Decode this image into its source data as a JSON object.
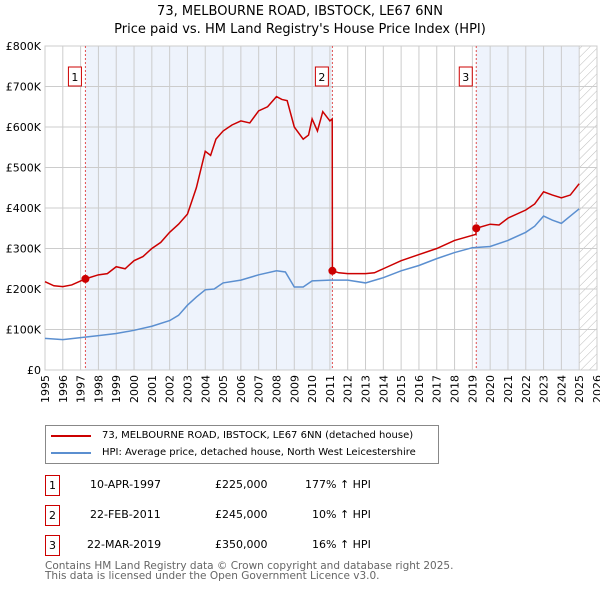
{
  "chart_data": {
    "type": "line",
    "title": "73, MELBOURNE ROAD, IBSTOCK, LE67 6NN",
    "subtitle": "Price paid vs. HM Land Registry's House Price Index (HPI)",
    "xlim": [
      1995,
      2026
    ],
    "ylim": [
      0,
      800000
    ],
    "x_ticks": [
      "1995",
      "1996",
      "1997",
      "1998",
      "1999",
      "2000",
      "2001",
      "2002",
      "2003",
      "2004",
      "2005",
      "2006",
      "2007",
      "2008",
      "2009",
      "2010",
      "2011",
      "2012",
      "2013",
      "2014",
      "2015",
      "2016",
      "2017",
      "2018",
      "2019",
      "2020",
      "2021",
      "2022",
      "2023",
      "2024",
      "2025",
      "2026"
    ],
    "y_ticks": [
      {
        "v": 0,
        "l": "£0"
      },
      {
        "v": 100000,
        "l": "£100K"
      },
      {
        "v": 200000,
        "l": "£200K"
      },
      {
        "v": 300000,
        "l": "£300K"
      },
      {
        "v": 400000,
        "l": "£400K"
      },
      {
        "v": 500000,
        "l": "£500K"
      },
      {
        "v": 600000,
        "l": "£600K"
      },
      {
        "v": 700000,
        "l": "£700K"
      },
      {
        "v": 800000,
        "l": "£800K"
      }
    ],
    "grid": true,
    "series": [
      {
        "name": "73, MELBOURNE ROAD, IBSTOCK, LE67 6NN (detached house)",
        "color": "#cc0000",
        "x": [
          1995,
          1995.5,
          1996,
          1996.5,
          1997.27,
          1998,
          1998.5,
          1999,
          1999.5,
          2000,
          2000.5,
          2001,
          2001.5,
          2002,
          2002.5,
          2003,
          2003.5,
          2004,
          2004.3,
          2004.6,
          2005,
          2005.5,
          2006,
          2006.5,
          2007,
          2007.5,
          2008,
          2008.3,
          2008.6,
          2009,
          2009.5,
          2009.8,
          2010,
          2010.3,
          2010.6,
          2011.0,
          2011.13,
          2011.14,
          2011.5,
          2012,
          2013,
          2013.5,
          2014,
          2015,
          2016,
          2017,
          2018,
          2019.2,
          2019.22,
          2020,
          2020.5,
          2021,
          2022,
          2022.5,
          2023,
          2023.5,
          2024,
          2024.5,
          2025
        ],
        "y": [
          218000,
          208000,
          206000,
          210000,
          225000,
          235000,
          238000,
          255000,
          250000,
          270000,
          280000,
          300000,
          315000,
          340000,
          360000,
          385000,
          450000,
          540000,
          530000,
          570000,
          590000,
          605000,
          615000,
          610000,
          640000,
          650000,
          675000,
          668000,
          665000,
          600000,
          570000,
          580000,
          620000,
          590000,
          638000,
          615000,
          620000,
          245000,
          240000,
          238000,
          238000,
          240000,
          250000,
          270000,
          285000,
          300000,
          320000,
          335000,
          350000,
          360000,
          358000,
          375000,
          395000,
          410000,
          440000,
          432000,
          425000,
          432000,
          460000
        ]
      },
      {
        "name": "HPI: Average price, detached house, North West Leicestershire",
        "color": "#5b8fd0",
        "x": [
          1995,
          1996,
          1997,
          1998,
          1999,
          2000,
          2001,
          2002,
          2002.5,
          2003,
          2003.5,
          2004,
          2004.5,
          2005,
          2006,
          2007,
          2008,
          2008.5,
          2009,
          2009.5,
          2010,
          2011,
          2012,
          2013,
          2014,
          2015,
          2016,
          2017,
          2018,
          2019,
          2020,
          2021,
          2022,
          2022.5,
          2023,
          2023.5,
          2024,
          2024.5,
          2025
        ],
        "y": [
          78000,
          75000,
          80000,
          85000,
          90000,
          98000,
          108000,
          122000,
          135000,
          160000,
          180000,
          198000,
          200000,
          215000,
          222000,
          235000,
          245000,
          242000,
          205000,
          205000,
          220000,
          222000,
          222000,
          215000,
          228000,
          245000,
          258000,
          275000,
          290000,
          302000,
          305000,
          320000,
          340000,
          355000,
          380000,
          370000,
          362000,
          380000,
          398000
        ]
      }
    ],
    "sales": [
      {
        "num": "1",
        "x": 1997.27,
        "price": 225000,
        "date": "10-APR-1997",
        "price_label": "£225,000",
        "hpi": "177% ↑ HPI"
      },
      {
        "num": "2",
        "x": 2011.14,
        "price": 245000,
        "date": "22-FEB-2011",
        "price_label": "£245,000",
        "hpi": "10% ↑ HPI"
      },
      {
        "num": "3",
        "x": 2019.22,
        "price": 350000,
        "date": "22-MAR-2019",
        "price_label": "£350,000",
        "hpi": "16% ↑ HPI"
      }
    ],
    "shaded_ranges": [
      [
        1997.27,
        2011.14
      ],
      [
        2019.22,
        2025.0
      ]
    ],
    "hatched_from": 2025.0
  },
  "footer": {
    "line1": "Contains HM Land Registry data © Crown copyright and database right 2025.",
    "line2": "This data is licensed under the Open Government Licence v3.0."
  }
}
